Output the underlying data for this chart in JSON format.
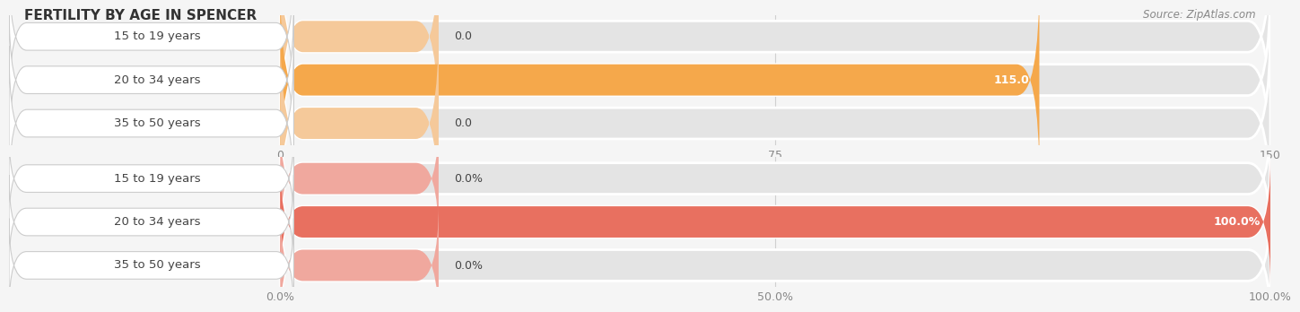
{
  "title": "FERTILITY BY AGE IN SPENCER",
  "source": "Source: ZipAtlas.com",
  "top_chart": {
    "categories": [
      "15 to 19 years",
      "20 to 34 years",
      "35 to 50 years"
    ],
    "values": [
      0.0,
      115.0,
      0.0
    ],
    "bar_color_full": "#F5A84B",
    "bar_color_zero": "#F5C99A",
    "xlim": [
      0,
      150.0
    ],
    "xticks": [
      0.0,
      75.0,
      150.0
    ],
    "value_labels": [
      "0.0",
      "115.0",
      "0.0"
    ]
  },
  "bottom_chart": {
    "categories": [
      "15 to 19 years",
      "20 to 34 years",
      "35 to 50 years"
    ],
    "values": [
      0.0,
      100.0,
      0.0
    ],
    "bar_color_full": "#E87060",
    "bar_color_zero": "#F0A89E",
    "xlim": [
      0,
      100.0
    ],
    "xticks": [
      0.0,
      50.0,
      100.0
    ],
    "xticklabels": [
      "0.0%",
      "50.0%",
      "100.0%"
    ],
    "value_labels": [
      "0.0%",
      "100.0%",
      "0.0%"
    ]
  },
  "bg_color": "#f5f5f5",
  "bar_bg_color": "#e4e4e4",
  "label_bg_color": "#ffffff",
  "label_color": "#444444",
  "tick_color": "#888888",
  "title_color": "#333333",
  "source_color": "#888888",
  "bar_height": 0.72,
  "label_fontsize": 9.5,
  "tick_fontsize": 9,
  "title_fontsize": 11,
  "value_fontsize": 9
}
